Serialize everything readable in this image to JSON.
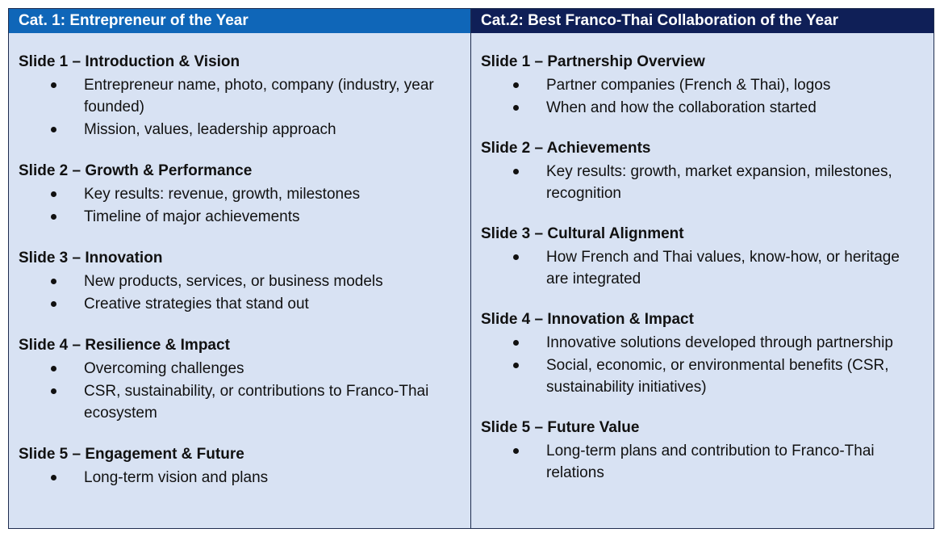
{
  "columns": [
    {
      "header": "Cat. 1: Entrepreneur of the Year",
      "slides": [
        {
          "title": "Slide 1 – Introduction & Vision",
          "bullets": [
            "Entrepreneur name, photo, company (industry, year founded)",
            "Mission, values, leadership approach"
          ]
        },
        {
          "title": "Slide 2 – Growth & Performance",
          "bullets": [
            "Key results: revenue, growth, milestones",
            "Timeline of major achievements"
          ]
        },
        {
          "title": "Slide 3 – Innovation",
          "bullets": [
            "New products, services, or business models",
            "Creative strategies that stand out"
          ]
        },
        {
          "title": "Slide 4 – Resilience & Impact",
          "bullets": [
            "Overcoming challenges",
            "CSR, sustainability, or contributions to Franco-Thai ecosystem"
          ]
        },
        {
          "title": "Slide 5 – Engagement & Future",
          "bullets": [
            "Long-term vision and plans"
          ]
        }
      ]
    },
    {
      "header": "Cat.2: Best Franco-Thai Collaboration of the Year",
      "slides": [
        {
          "title": "Slide 1 – Partnership Overview",
          "bullets": [
            "Partner companies (French & Thai), logos",
            "When and how the collaboration started"
          ]
        },
        {
          "title": "Slide 2 – Achievements",
          "bullets": [
            "Key results: growth, market expansion, milestones, recognition"
          ]
        },
        {
          "title": "Slide 3 – Cultural Alignment",
          "bullets": [
            "How French and Thai values, know-how, or heritage are integrated"
          ]
        },
        {
          "title": "Slide 4 – Innovation & Impact",
          "bullets": [
            "Innovative solutions developed through partnership",
            "Social, economic, or environmental benefits (CSR, sustainability initiatives)"
          ]
        },
        {
          "title": "Slide 5 – Future Value",
          "bullets": [
            "Long-term plans and contribution to Franco-Thai relations"
          ]
        }
      ]
    }
  ]
}
